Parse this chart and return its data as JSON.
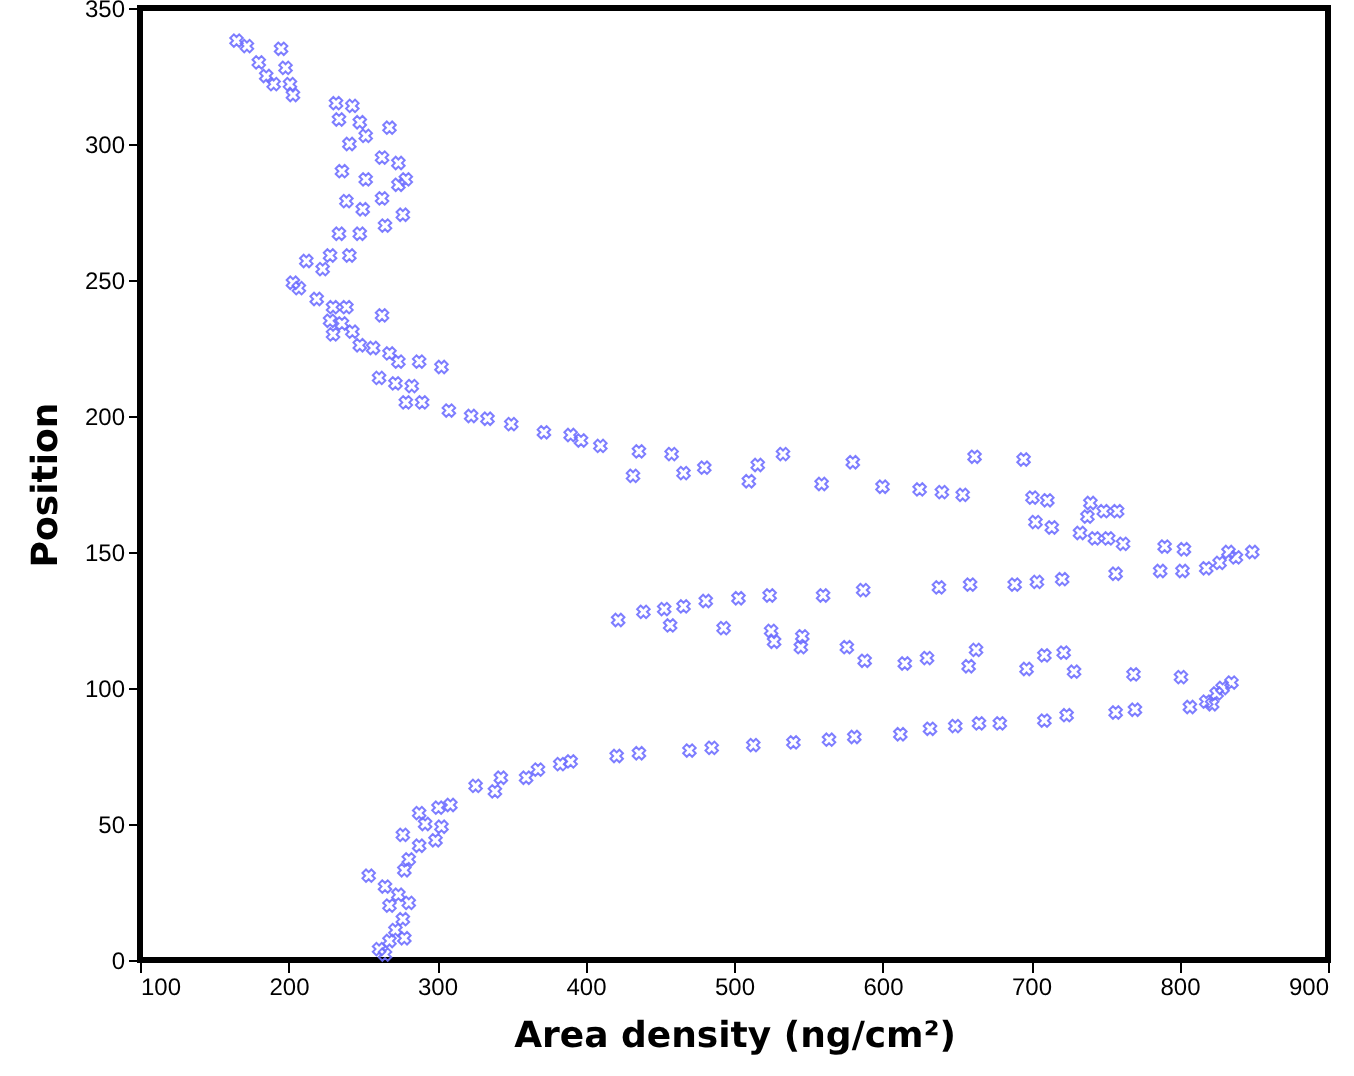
{
  "chart_data": {
    "type": "scatter",
    "xlabel": "Area density (ng/cm²)",
    "ylabel": "Position",
    "xlim": [
      100,
      900
    ],
    "xticks": [
      100,
      200,
      300,
      400,
      500,
      600,
      700,
      800,
      900
    ],
    "ylim": [
      0,
      350
    ],
    "yticks": [
      0,
      50,
      100,
      150,
      200,
      250,
      300,
      350
    ],
    "grid": false,
    "marker": "cross",
    "series": [
      {
        "color": "#7070ff",
        "x": [
          165,
          172,
          180,
          185,
          190,
          195,
          198,
          201,
          203,
          232,
          243,
          234,
          248,
          268,
          241,
          252,
          263,
          274,
          236,
          252,
          274,
          279,
          239,
          250,
          263,
          277,
          265,
          234,
          248,
          228,
          241,
          212,
          223,
          203,
          207,
          219,
          230,
          239,
          228,
          236,
          263,
          230,
          243,
          248,
          257,
          268,
          274,
          288,
          303,
          261,
          272,
          283,
          279,
          290,
          308,
          323,
          334,
          350,
          372,
          390,
          397,
          410,
          436,
          458,
          432,
          466,
          480,
          510,
          516,
          533,
          559,
          580,
          600,
          625,
          640,
          654,
          662,
          695,
          701,
          711,
          703,
          714,
          733,
          740,
          738,
          749,
          758,
          743,
          752,
          762,
          790,
          803,
          818,
          827,
          833,
          838,
          849,
          422,
          439,
          453,
          466,
          481,
          503,
          524,
          560,
          587,
          638,
          659,
          689,
          704,
          721,
          757,
          787,
          802,
          457,
          493,
          525,
          527,
          546,
          545,
          576,
          588,
          615,
          630,
          658,
          663,
          697,
          709,
          722,
          729,
          769,
          801,
          807,
          818,
          825,
          829,
          835,
          822,
          421,
          436,
          470,
          485,
          513,
          540,
          564,
          581,
          612,
          632,
          649,
          665,
          679,
          709,
          724,
          757,
          770,
          390,
          383,
          368,
          360,
          343,
          339,
          326,
          309,
          301,
          288,
          303,
          292,
          277,
          288,
          299,
          281,
          278,
          254,
          265,
          274,
          281,
          268,
          277,
          272,
          278,
          268,
          261,
          265
        ],
        "values": [
          338,
          336,
          330,
          325,
          322,
          335,
          328,
          322,
          318,
          315,
          314,
          309,
          308,
          306,
          300,
          303,
          295,
          293,
          290,
          287,
          285,
          287,
          279,
          276,
          280,
          274,
          270,
          267,
          267,
          259,
          259,
          257,
          254,
          249,
          247,
          243,
          240,
          240,
          235,
          234,
          237,
          230,
          231,
          226,
          225,
          223,
          220,
          220,
          218,
          214,
          212,
          211,
          205,
          205,
          202,
          200,
          199,
          197,
          194,
          193,
          191,
          189,
          187,
          186,
          178,
          179,
          181,
          176,
          182,
          186,
          175,
          183,
          174,
          173,
          172,
          171,
          185,
          184,
          170,
          169,
          161,
          159,
          157,
          168,
          163,
          165,
          165,
          155,
          155,
          153,
          152,
          151,
          144,
          146,
          150,
          148,
          150,
          125,
          128,
          129,
          130,
          132,
          133,
          134,
          134,
          136,
          137,
          138,
          138,
          139,
          140,
          142,
          143,
          143,
          123,
          122,
          121,
          117,
          119,
          115,
          115,
          110,
          109,
          111,
          108,
          114,
          107,
          112,
          113,
          106,
          105,
          104,
          93,
          95,
          98,
          100,
          102,
          94,
          75,
          76,
          77,
          78,
          79,
          80,
          81,
          82,
          83,
          85,
          86,
          87,
          87,
          88,
          90,
          91,
          92,
          73,
          72,
          70,
          67,
          67,
          62,
          64,
          57,
          56,
          54,
          49,
          50,
          46,
          42,
          44,
          37,
          33,
          31,
          27,
          24,
          21,
          20,
          15,
          11,
          8,
          7,
          4,
          2
        ]
      }
    ]
  }
}
